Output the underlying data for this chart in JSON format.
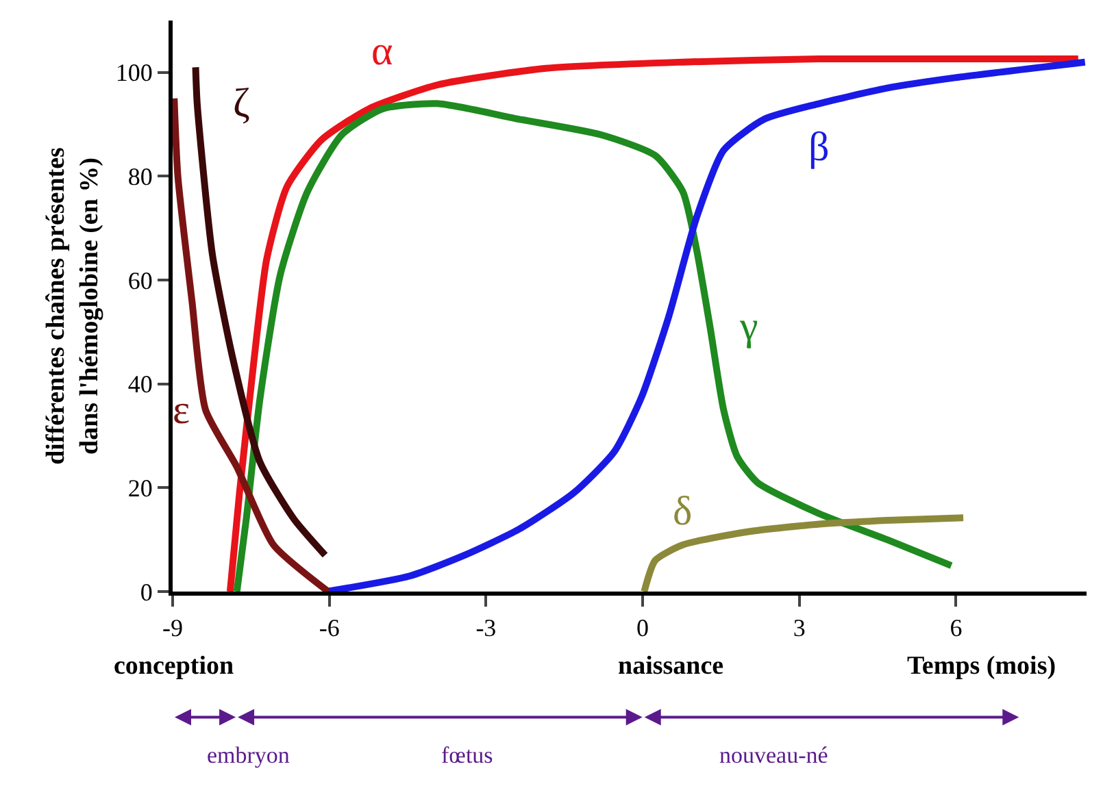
{
  "chart_data": {
    "type": "line",
    "ylabel": "différentes chaînes présentes\ndans l'hémoglobine (en %)",
    "xlabel": "Temps (mois)",
    "xlim": [
      -9,
      8.5
    ],
    "ylim": [
      0,
      110
    ],
    "xticks": [
      -9,
      -6,
      -3,
      0,
      3,
      6
    ],
    "yticks": [
      0,
      20,
      40,
      60,
      80,
      100
    ],
    "legend": false,
    "marker": "none",
    "line_style": "solid",
    "series": [
      {
        "name": "α",
        "color": "#e8141a",
        "x": [
          -7.9,
          -7.72,
          -7.46,
          -7.2,
          -6.81,
          -6.15,
          -5.24,
          -3.93,
          -1.85,
          0.77,
          3.38,
          8.34
        ],
        "values": [
          0,
          19,
          43,
          64,
          78,
          87,
          93,
          97.6,
          100.8,
          102,
          102.6,
          102.6
        ]
      },
      {
        "name": "γ",
        "color": "#1f8a1f",
        "x": [
          -7.77,
          -7.59,
          -7.33,
          -6.94,
          -6.42,
          -5.76,
          -4.98,
          -3.93,
          -2.37,
          -0.8,
          0.24,
          0.77,
          1.03,
          1.29,
          1.55,
          1.81,
          2.2,
          3.38,
          4.68,
          5.91
        ],
        "values": [
          0,
          14,
          37,
          61,
          77,
          88,
          93,
          94,
          91,
          88,
          84,
          77,
          66,
          51,
          35,
          26,
          21,
          15,
          10,
          5
        ]
      },
      {
        "name": "β",
        "color": "#1a1ae6",
        "x": [
          -6.05,
          -4.46,
          -3.41,
          -2.37,
          -1.32,
          -0.54,
          -0.02,
          0.5,
          1.03,
          1.55,
          2.33,
          3.38,
          4.68,
          5.99,
          8.47
        ],
        "values": [
          0,
          3,
          7,
          12,
          19,
          27,
          37.5,
          53,
          72,
          85,
          91,
          94,
          97,
          99,
          102
        ]
      },
      {
        "name": "δ",
        "color": "#8c8a3a",
        "x": [
          0.03,
          0.24,
          0.77,
          2.07,
          3.38,
          4.68,
          6.14
        ],
        "values": [
          0,
          6,
          9,
          11.6,
          13,
          13.7,
          14.2
        ]
      },
      {
        "name": "ε",
        "color": "#7a1414",
        "x": [
          -8.97,
          -8.9,
          -8.63,
          -8.37,
          -7.77,
          -7.07,
          -6.02
        ],
        "values": [
          95,
          80,
          56,
          35,
          24,
          9,
          0
        ]
      },
      {
        "name": "ζ",
        "color": "#3a0808",
        "x": [
          -8.56,
          -8.53,
          -8.24,
          -7.85,
          -7.33,
          -6.68,
          -6.08
        ],
        "values": [
          101,
          94,
          65,
          45,
          25,
          14,
          7
        ]
      }
    ],
    "annotations": [
      "conception",
      "naissance",
      "embryon",
      "fœtus",
      "nouveau-né"
    ]
  }
}
